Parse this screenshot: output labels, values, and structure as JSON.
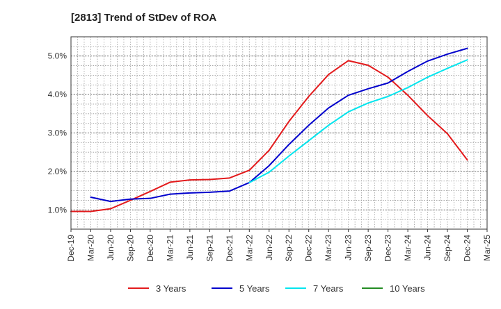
{
  "chart_data": {
    "type": "line",
    "title": "[2813]  Trend of StDev of ROA",
    "xlabel": "",
    "ylabel": "",
    "grid": true,
    "legend_position": "bottom",
    "x_categories": [
      "Dec-19",
      "Mar-20",
      "Jun-20",
      "Sep-20",
      "Dec-20",
      "Mar-21",
      "Jun-21",
      "Sep-21",
      "Dec-21",
      "Mar-22",
      "Jun-22",
      "Sep-22",
      "Dec-22",
      "Mar-23",
      "Jun-23",
      "Sep-23",
      "Dec-23",
      "Mar-24",
      "Jun-24",
      "Sep-24",
      "Dec-24",
      "Mar-25"
    ],
    "y_ticks": [
      1.0,
      2.0,
      3.0,
      4.0,
      5.0
    ],
    "y_tick_labels": [
      "1.0%",
      "2.0%",
      "3.0%",
      "4.0%",
      "5.0%"
    ],
    "ylim": [
      0.5,
      5.5
    ],
    "series": [
      {
        "name": "3 Years",
        "color": "#e31a1c",
        "values": [
          0.96,
          0.96,
          1.03,
          1.25,
          1.48,
          1.72,
          1.78,
          1.79,
          1.83,
          2.03,
          2.55,
          3.3,
          3.95,
          4.52,
          4.88,
          4.76,
          4.45,
          3.98,
          3.45,
          2.98,
          2.3,
          null
        ]
      },
      {
        "name": "5 Years",
        "color": "#0000cc",
        "values": [
          null,
          1.33,
          1.22,
          1.28,
          1.3,
          1.41,
          1.44,
          1.46,
          1.49,
          1.71,
          2.15,
          2.7,
          3.2,
          3.65,
          3.98,
          4.15,
          4.3,
          4.6,
          4.87,
          5.05,
          5.2,
          null
        ]
      },
      {
        "name": "7 Years",
        "color": "#00e5ee",
        "values": [
          null,
          null,
          null,
          null,
          null,
          null,
          null,
          null,
          null,
          1.71,
          1.98,
          2.4,
          2.8,
          3.2,
          3.55,
          3.78,
          3.95,
          4.18,
          4.45,
          4.68,
          4.9,
          null
        ]
      },
      {
        "name": "10 Years",
        "color": "#228b22",
        "values": [
          null,
          null,
          null,
          null,
          null,
          null,
          null,
          null,
          null,
          null,
          null,
          null,
          null,
          null,
          null,
          null,
          null,
          null,
          null,
          null,
          null,
          null
        ]
      }
    ]
  }
}
